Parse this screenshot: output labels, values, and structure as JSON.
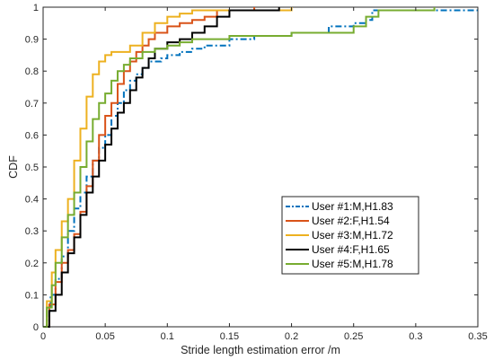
{
  "chart_data": {
    "type": "line",
    "title": "",
    "xlabel": "Stride length estimation error /m",
    "ylabel": "CDF",
    "xlim": [
      0,
      0.35
    ],
    "ylim": [
      0,
      1
    ],
    "x_ticks": [
      "0",
      "0.05",
      "0.1",
      "0.15",
      "0.2",
      "0.25",
      "0.3",
      "0.35"
    ],
    "y_ticks": [
      "0",
      "0.1",
      "0.2",
      "0.3",
      "0.4",
      "0.5",
      "0.6",
      "0.7",
      "0.8",
      "0.9",
      "1"
    ],
    "grid": false,
    "legend_position": "center-right",
    "series": [
      {
        "name": "User #1:M,H1.83",
        "color": "#0072BD",
        "dash": "dashdot",
        "x": [
          0,
          0.003,
          0.006,
          0.01,
          0.015,
          0.02,
          0.025,
          0.03,
          0.035,
          0.04,
          0.045,
          0.05,
          0.055,
          0.06,
          0.065,
          0.07,
          0.075,
          0.08,
          0.085,
          0.09,
          0.095,
          0.1,
          0.11,
          0.12,
          0.13,
          0.15,
          0.17,
          0.2,
          0.23,
          0.25,
          0.26,
          0.265,
          0.3,
          0.35
        ],
        "y": [
          0,
          0.05,
          0.1,
          0.15,
          0.22,
          0.3,
          0.37,
          0.42,
          0.47,
          0.52,
          0.56,
          0.6,
          0.66,
          0.7,
          0.74,
          0.77,
          0.79,
          0.81,
          0.83,
          0.83,
          0.84,
          0.85,
          0.86,
          0.87,
          0.88,
          0.9,
          0.91,
          0.92,
          0.94,
          0.95,
          0.96,
          0.99,
          0.99,
          0.99
        ]
      },
      {
        "name": "User #2:F,H1.54",
        "color": "#D95319",
        "dash": "solid",
        "x": [
          0,
          0.005,
          0.01,
          0.015,
          0.02,
          0.025,
          0.03,
          0.035,
          0.04,
          0.045,
          0.05,
          0.055,
          0.06,
          0.065,
          0.07,
          0.075,
          0.08,
          0.085,
          0.09,
          0.1,
          0.11,
          0.12,
          0.13,
          0.14,
          0.16,
          0.17
        ],
        "y": [
          0,
          0.07,
          0.14,
          0.2,
          0.24,
          0.29,
          0.36,
          0.44,
          0.52,
          0.6,
          0.66,
          0.7,
          0.76,
          0.8,
          0.83,
          0.86,
          0.88,
          0.9,
          0.92,
          0.94,
          0.95,
          0.96,
          0.97,
          0.99,
          0.99,
          1.0
        ]
      },
      {
        "name": "User #3:M,H1.72",
        "color": "#EDB120",
        "dash": "solid",
        "x": [
          0,
          0.003,
          0.007,
          0.01,
          0.015,
          0.02,
          0.025,
          0.03,
          0.035,
          0.04,
          0.045,
          0.05,
          0.055,
          0.06,
          0.07,
          0.08,
          0.09,
          0.1,
          0.11,
          0.12,
          0.15,
          0.19,
          0.2
        ],
        "y": [
          0,
          0.08,
          0.17,
          0.24,
          0.33,
          0.4,
          0.52,
          0.62,
          0.72,
          0.79,
          0.83,
          0.85,
          0.86,
          0.86,
          0.88,
          0.92,
          0.95,
          0.97,
          0.98,
          0.99,
          0.99,
          0.99,
          1.0
        ]
      },
      {
        "name": "User #4:F,H1.65",
        "color": "#000000",
        "dash": "solid",
        "x": [
          0,
          0.005,
          0.01,
          0.015,
          0.02,
          0.025,
          0.03,
          0.035,
          0.04,
          0.045,
          0.05,
          0.055,
          0.06,
          0.065,
          0.07,
          0.075,
          0.08,
          0.085,
          0.09,
          0.1,
          0.11,
          0.12,
          0.13,
          0.14,
          0.15,
          0.19
        ],
        "y": [
          0,
          0.05,
          0.1,
          0.17,
          0.23,
          0.28,
          0.35,
          0.42,
          0.47,
          0.52,
          0.57,
          0.62,
          0.67,
          0.7,
          0.74,
          0.78,
          0.81,
          0.84,
          0.87,
          0.89,
          0.9,
          0.92,
          0.94,
          0.97,
          0.99,
          1.0
        ]
      },
      {
        "name": "User #5:M,H1.78",
        "color": "#77AC30",
        "dash": "solid",
        "x": [
          0,
          0.003,
          0.007,
          0.01,
          0.015,
          0.02,
          0.025,
          0.03,
          0.035,
          0.04,
          0.045,
          0.05,
          0.055,
          0.06,
          0.065,
          0.07,
          0.08,
          0.09,
          0.1,
          0.11,
          0.12,
          0.15,
          0.2,
          0.25,
          0.26,
          0.27,
          0.315
        ],
        "y": [
          0,
          0.06,
          0.13,
          0.2,
          0.28,
          0.35,
          0.42,
          0.5,
          0.58,
          0.65,
          0.7,
          0.73,
          0.77,
          0.8,
          0.82,
          0.84,
          0.86,
          0.87,
          0.88,
          0.89,
          0.9,
          0.91,
          0.92,
          0.94,
          0.97,
          0.99,
          1.0
        ]
      }
    ]
  }
}
